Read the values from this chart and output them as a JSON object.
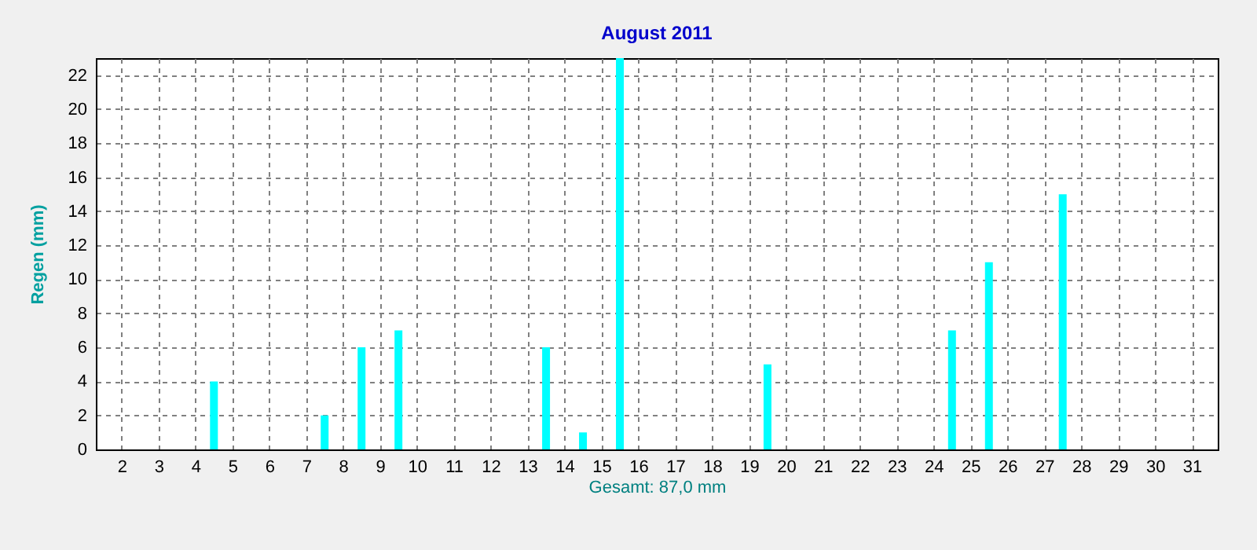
{
  "chart_data": {
    "type": "bar",
    "title": "August 2011",
    "xlabel": "Gesamt: 87,0 mm",
    "ylabel": "Regen  (mm)",
    "x": [
      1.5,
      2.5,
      3.5,
      4.5,
      5.5,
      6.5,
      7.5,
      8.5,
      9.5,
      10.5,
      11.5,
      12.5,
      13.5,
      14.5,
      15.5,
      16.5,
      17.5,
      18.5,
      19.5,
      20.5,
      21.5,
      22.5,
      23.5,
      24.5,
      25.5,
      26.5,
      27.5,
      28.5,
      29.5,
      30.5,
      31.5
    ],
    "values": [
      0,
      0,
      0,
      4,
      0,
      0,
      2,
      6,
      7,
      0,
      0,
      0,
      6,
      1,
      23,
      0,
      0,
      0,
      5,
      0,
      0,
      0,
      0,
      7,
      11,
      0,
      15,
      0,
      0,
      0,
      0
    ],
    "color": "#00ffff",
    "xlim": [
      1.3,
      31.7
    ],
    "xticks": [
      2,
      3,
      4,
      5,
      6,
      7,
      8,
      9,
      10,
      11,
      12,
      13,
      14,
      15,
      16,
      17,
      18,
      19,
      20,
      21,
      22,
      23,
      24,
      25,
      26,
      27,
      28,
      29,
      30,
      31
    ],
    "ylim": [
      0,
      23
    ],
    "yticks": [
      0,
      2,
      4,
      6,
      8,
      10,
      12,
      14,
      16,
      18,
      20,
      22
    ],
    "grid": true
  }
}
